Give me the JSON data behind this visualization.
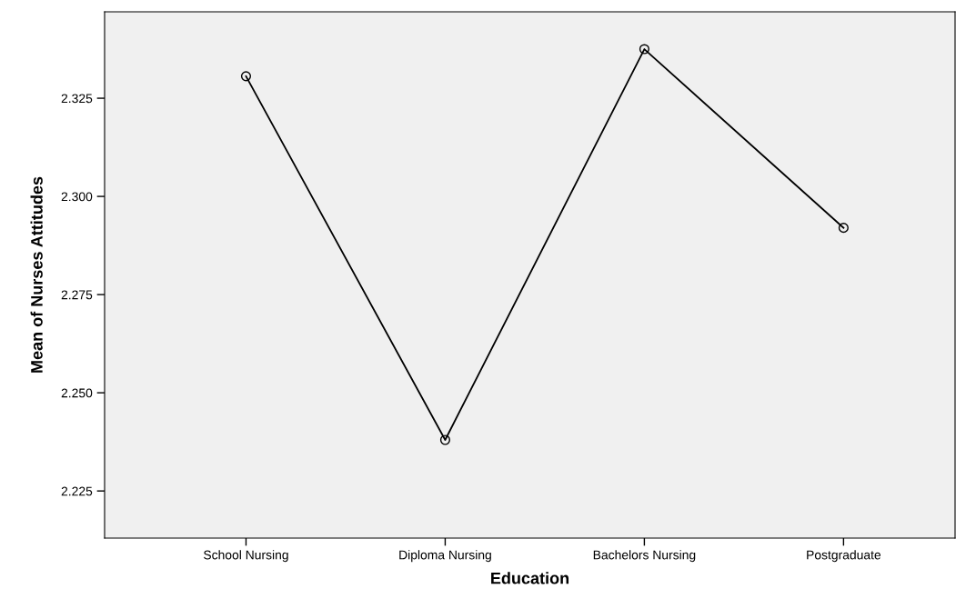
{
  "chart_data": {
    "type": "line",
    "xlabel": "Education",
    "ylabel": "Mean of Nurses Attitudes",
    "categories": [
      "School Nursing",
      "Diploma Nursing",
      "Bachelors Nursing",
      "Postgraduate"
    ],
    "series": [
      {
        "color": "#000000",
        "values": [
          2.3306,
          2.238,
          2.3375,
          2.292
        ]
      }
    ],
    "ylim": [
      2.213,
      2.347
    ],
    "yticks": [
      {
        "value": 2.225,
        "label": "2.225"
      },
      {
        "value": 2.25,
        "label": "2.250"
      },
      {
        "value": 2.275,
        "label": "2.275"
      },
      {
        "value": 2.3,
        "label": "2.300"
      },
      {
        "value": 2.325,
        "label": "2.325"
      }
    ],
    "grid": false,
    "marker": "circle",
    "line_style": "solid"
  }
}
